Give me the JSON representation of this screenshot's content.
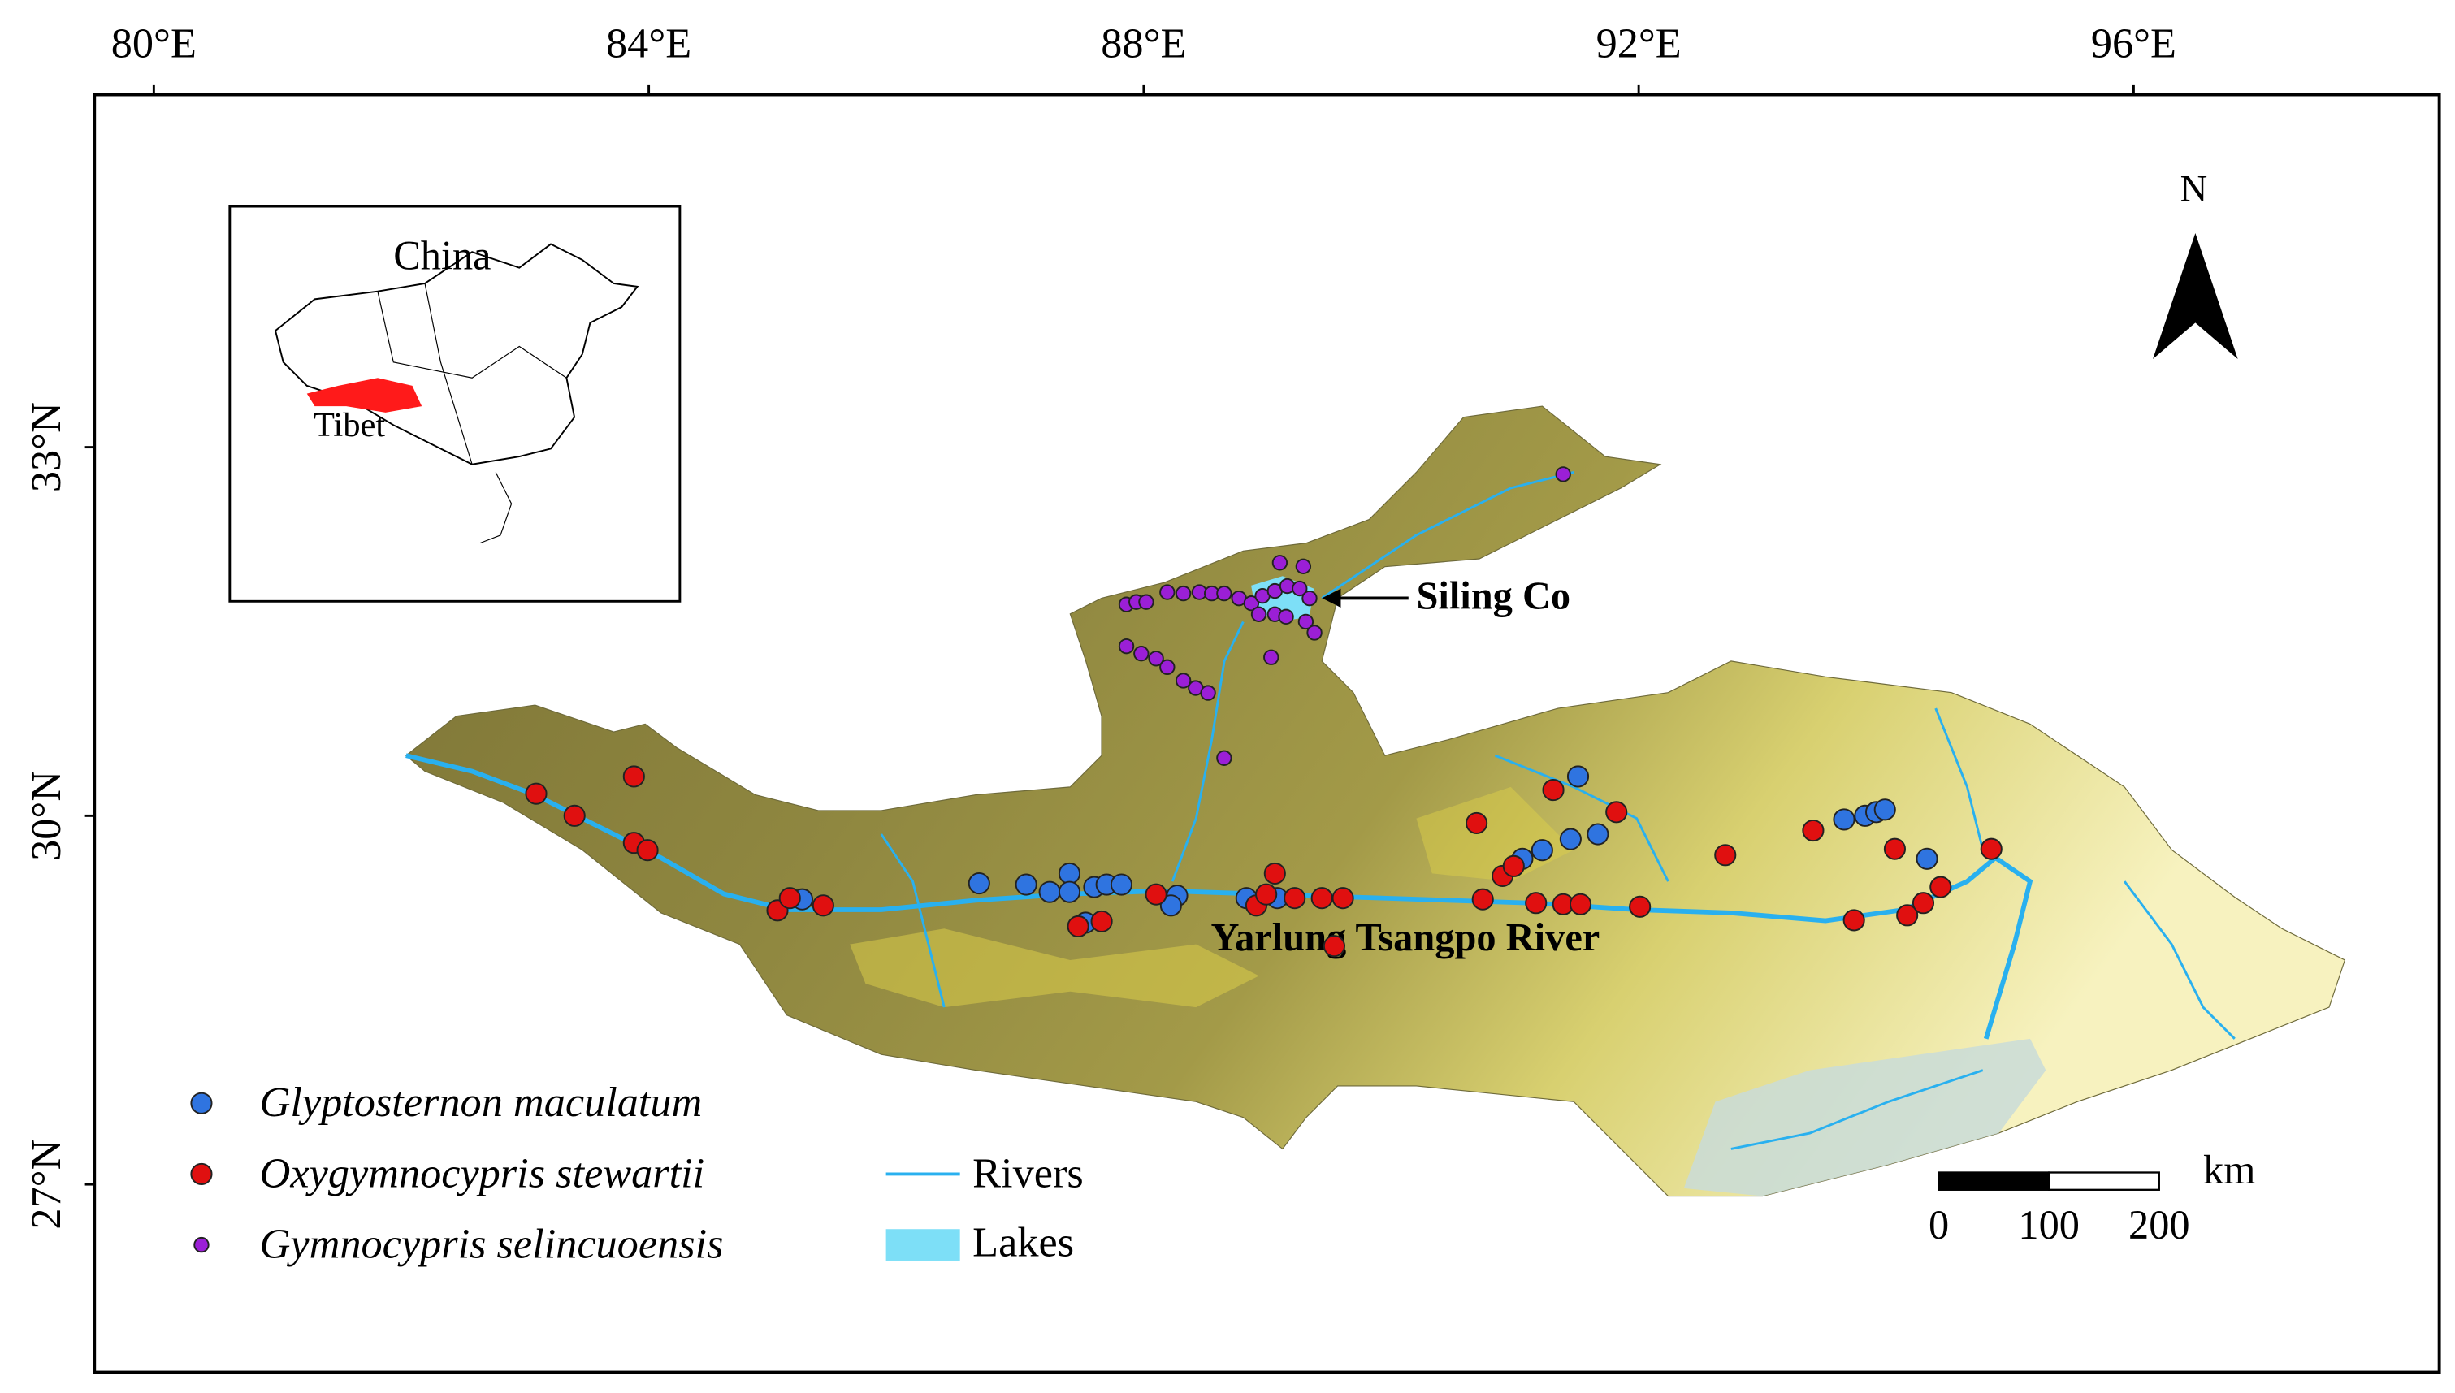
{
  "chart_data": {
    "type": "map",
    "xlim": [
      79.52,
      98.47
    ],
    "ylim": [
      25.47,
      35.87
    ],
    "xticks": [
      {
        "value": 80,
        "label": "80°E"
      },
      {
        "value": 84,
        "label": "84°E"
      },
      {
        "value": 88,
        "label": "88°E"
      },
      {
        "value": 92,
        "label": "92°E"
      },
      {
        "value": 96,
        "label": "96°E"
      }
    ],
    "yticks": [
      {
        "value": 27,
        "label": "27°N"
      },
      {
        "value": 30,
        "label": "30°N"
      },
      {
        "value": 33,
        "label": "33°N"
      }
    ],
    "annotations": [
      "Siling Co",
      "Yarlung Tsangpo River"
    ],
    "inset": {
      "title": "China",
      "label": "Tibet"
    },
    "north_label": "N",
    "legend_extra": [
      "Rivers",
      "Lakes"
    ],
    "scale_bar": {
      "unit": "km",
      "ticks": [
        0,
        100,
        200
      ]
    },
    "series": [
      {
        "name": "Glyptosternon maculatum",
        "color": "#2f74e0",
        "x": [
          85.24,
          86.67,
          87.05,
          87.24,
          87.4,
          87.4,
          87.6,
          87.7,
          87.82,
          87.53,
          88.27,
          88.22,
          88.83,
          89.08,
          91.06,
          91.22,
          91.45,
          91.51,
          91.67,
          93.66,
          93.83,
          93.92,
          93.99,
          94.33
        ],
        "y": [
          29.32,
          29.45,
          29.44,
          29.38,
          29.53,
          29.38,
          29.42,
          29.44,
          29.44,
          29.13,
          29.35,
          29.27,
          29.33,
          29.33,
          29.65,
          29.72,
          29.81,
          30.32,
          29.85,
          29.97,
          30.0,
          30.03,
          30.05,
          29.65
        ]
      },
      {
        "name": "Oxygymnocypris stewartii",
        "color": "#e01010",
        "x": [
          83.09,
          83.4,
          83.88,
          83.88,
          83.99,
          85.04,
          85.14,
          85.41,
          87.47,
          87.66,
          88.1,
          88.91,
          88.99,
          89.06,
          89.22,
          89.44,
          89.61,
          89.54,
          90.69,
          90.74,
          90.9,
          90.99,
          91.17,
          91.31,
          91.39,
          91.53,
          91.82,
          92.01,
          92.7,
          93.41,
          93.74,
          94.07,
          94.17,
          94.3,
          94.44,
          94.85
        ],
        "y": [
          30.18,
          30.0,
          30.32,
          29.78,
          29.72,
          29.23,
          29.33,
          29.27,
          29.1,
          29.14,
          29.36,
          29.27,
          29.36,
          29.53,
          29.33,
          29.33,
          29.33,
          28.94,
          29.94,
          29.32,
          29.51,
          29.59,
          29.29,
          30.21,
          29.28,
          29.28,
          30.03,
          29.26,
          29.68,
          29.88,
          29.15,
          29.73,
          29.19,
          29.29,
          29.42,
          29.73
        ]
      },
      {
        "name": "Gymnocypris selincuoensis",
        "color": "#9b1fd6",
        "x": [
          91.39,
          87.86,
          87.94,
          88.02,
          88.19,
          88.32,
          88.45,
          88.55,
          88.65,
          88.77,
          88.87,
          88.96,
          89.06,
          89.16,
          89.26,
          89.34,
          89.1,
          89.29,
          88.93,
          89.06,
          89.15,
          89.31,
          89.38,
          87.86,
          87.98,
          88.1,
          88.19,
          88.32,
          88.42,
          88.52,
          89.03,
          88.65
        ],
        "y": [
          32.78,
          31.72,
          31.74,
          31.74,
          31.82,
          31.81,
          31.82,
          31.81,
          31.81,
          31.77,
          31.73,
          31.79,
          31.83,
          31.87,
          31.85,
          31.77,
          32.06,
          32.03,
          31.64,
          31.64,
          31.62,
          31.58,
          31.49,
          31.38,
          31.32,
          31.28,
          31.21,
          31.1,
          31.04,
          31.0,
          31.29,
          30.47
        ]
      }
    ]
  }
}
